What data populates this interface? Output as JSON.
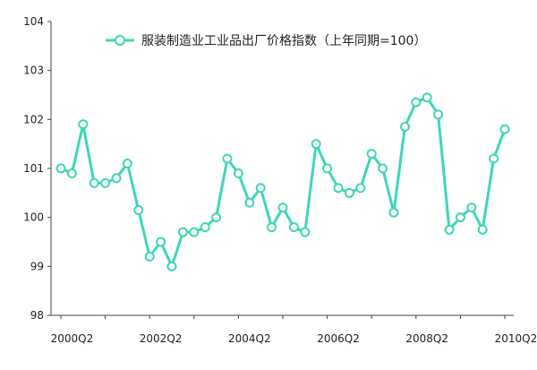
{
  "chart_data": {
    "type": "line",
    "title": "",
    "xlabel": "",
    "ylabel": "",
    "ylim": [
      98,
      104
    ],
    "yticks": [
      "98",
      "99",
      "100",
      "101",
      "102",
      "103",
      "104"
    ],
    "x_tick_labels": [
      {
        "label": "2000Q2",
        "index": 1
      },
      {
        "label": "2002Q2",
        "index": 9
      },
      {
        "label": "2004Q2",
        "index": 17
      },
      {
        "label": "2006Q2",
        "index": 25
      },
      {
        "label": "2008Q2",
        "index": 33
      },
      {
        "label": "2010Q2",
        "index": 41
      }
    ],
    "grid": false,
    "legend_position": "top",
    "series": [
      {
        "name": "服装制造业工业品出厂价格指数（上年同期=100）",
        "color": "#3fd6b8",
        "values": [
          101.0,
          100.9,
          101.9,
          100.7,
          100.7,
          100.8,
          101.1,
          100.15,
          99.2,
          99.5,
          99.0,
          99.7,
          99.7,
          99.8,
          100.0,
          101.2,
          100.9,
          100.3,
          100.6,
          99.8,
          100.2,
          99.8,
          99.7,
          101.5,
          101.0,
          100.6,
          100.5,
          100.6,
          101.3,
          101.0,
          100.1,
          101.85,
          102.35,
          102.45,
          102.1,
          99.75,
          100.0,
          100.2,
          99.75,
          101.2,
          101.8
        ]
      }
    ]
  }
}
